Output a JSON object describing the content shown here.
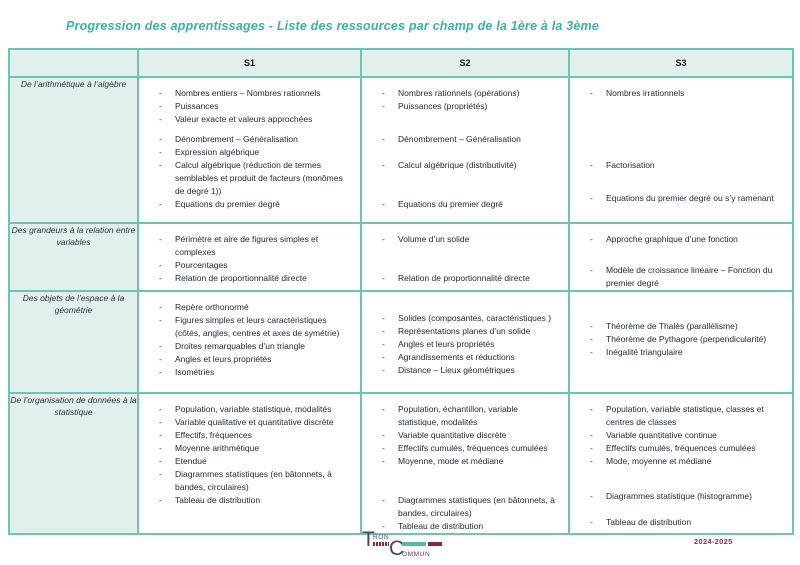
{
  "page": {
    "title": "Progression des apprentissages - Liste des ressources par champ de la 1ère à la 3ème"
  },
  "table": {
    "bullet": "-",
    "headers": [
      "S1",
      "S2",
      "S3"
    ],
    "rows": [
      {
        "label": "De l’arithmétique à l’algèbre",
        "cols": [
          [
            {
              "text": "Nombres entiers – Nombres rationnels",
              "gap": 0
            },
            {
              "text": "Puissances",
              "gap": 0
            },
            {
              "text": "Valeur exacte et valeurs approchées",
              "gap": 0
            },
            {
              "text": "Dénombrement – Généralisation",
              "gap": 7
            },
            {
              "text": "Expression algébrique",
              "gap": 0
            },
            {
              "text": "Calcul algébrique (réduction de termes semblables et produit de facteurs (monômes de degré 1))",
              "gap": 0
            },
            {
              "text": "Equations du premier degré",
              "gap": 0
            }
          ],
          [
            {
              "text": "Nombres rationnels (opérations)",
              "gap": 0
            },
            {
              "text": "Puissances (propriétés)",
              "gap": 0
            },
            {
              "text": "Dénombrement – Généralisation",
              "gap": 20
            },
            {
              "text": "Calcul algébrique (distributivité)",
              "gap": 13
            },
            {
              "text": "Equations du premier degré",
              "gap": 26
            }
          ],
          [
            {
              "text": "Nombres irrationnels",
              "gap": 0
            },
            {
              "text": "Factorisation",
              "gap": 59
            },
            {
              "text": "Equations du premier degré ou s’y ramenant",
              "gap": 20
            }
          ]
        ]
      },
      {
        "label": "Des grandeurs à la relation entre variables",
        "cols": [
          [
            {
              "text": "Périmètre et aire de figures simples et complexes",
              "gap": 0
            },
            {
              "text": "Pourcentages",
              "gap": 0
            },
            {
              "text": "Relation de proportionnalité directe",
              "gap": 0
            }
          ],
          [
            {
              "text": "Volume d’un solide",
              "gap": 0
            },
            {
              "text": "Relation de proportionnalité directe",
              "gap": 26
            }
          ],
          [
            {
              "text": "Approche graphique d’une fonction",
              "gap": 0
            },
            {
              "text": "Modèle de croissance linéaire – Fonction du premier degré",
              "gap": 18
            }
          ]
        ]
      },
      {
        "label": "Des objets de l’espace à la géométrie",
        "cols": [
          [
            {
              "text": "Repère orthonormé",
              "gap": 0
            },
            {
              "text": "Figures simples et leurs caractéristiques (côtés, angles, centres et axes de symétrie)",
              "gap": 0
            },
            {
              "text": "Droites remarquables d’un triangle",
              "gap": 0
            },
            {
              "text": "Angles et leurs propriétés",
              "gap": 0
            },
            {
              "text": "Isométries",
              "gap": 0
            }
          ],
          [
            {
              "text": "Solides (composantes, caractéristiques )",
              "gap": 11
            },
            {
              "text": "Représentations planes d’un solide",
              "gap": 0
            },
            {
              "text": "Angles et leurs propriétés",
              "gap": 0
            },
            {
              "text": "Agrandissements et réductions",
              "gap": 0
            },
            {
              "text": "Distance – Lieux géométriques",
              "gap": 0
            }
          ],
          [
            {
              "text": "Théorème de Thalès (parallélisme)",
              "gap": 19
            },
            {
              "text": "Théorème de Pythagore (perpendicularité)",
              "gap": 0
            },
            {
              "text": "Inégalité triangulaire",
              "gap": 0
            }
          ]
        ]
      },
      {
        "label": "De l’organisation de données à la statistique",
        "cols": [
          [
            {
              "text": "Population, variable statistique, modalités",
              "gap": 0
            },
            {
              "text": "Variable qualitative et quantitative discrète",
              "gap": 0
            },
            {
              "text": "Effectifs, fréquences",
              "gap": 0
            },
            {
              "text": "Moyenne arithmétique",
              "gap": 0
            },
            {
              "text": "Etendue",
              "gap": 0
            },
            {
              "text": "Diagrammes statistiques (en bâtonnets, à bandes, circulaires)",
              "gap": 0
            },
            {
              "text": "Tableau de distribution",
              "gap": 0
            }
          ],
          [
            {
              "text": "Population, échantillon, variable statistique, modalités",
              "gap": 0
            },
            {
              "text": "Variable quantitative discrète",
              "gap": 0
            },
            {
              "text": "Effectifs cumulés, fréquences cumulées",
              "gap": 0
            },
            {
              "text": "Moyenne, mode et médiane",
              "gap": 0
            },
            {
              "text": "Diagrammes statistiques (en bâtonnets, à bandes, circulaires)",
              "gap": 26
            },
            {
              "text": "Tableau de distribution",
              "gap": 0
            }
          ],
          [
            {
              "text": "Population, variable statistique, classes et centres de classes",
              "gap": 0
            },
            {
              "text": "Variable quantitative continue",
              "gap": 0
            },
            {
              "text": "Effectifs cumulés, fréquences cumulées",
              "gap": 0
            },
            {
              "text": "Mode, moyenne et médiane",
              "gap": 0
            },
            {
              "text": "Diagrammes statistique (histogramme)",
              "gap": 22
            },
            {
              "text": "Tableau de distribution",
              "gap": 13
            }
          ]
        ]
      }
    ]
  },
  "footer": {
    "logo": {
      "t": "T",
      "ron": "RON",
      "c": "C",
      "ommun": "OMMUN"
    },
    "year": "2024-2025"
  },
  "colors": {
    "title_teal": "#3bb1a7",
    "border_teal": "#6cc3b6",
    "cell_mint": "#e2f0ec",
    "logo_navy": "#43486e",
    "logo_teal": "#52b8ac",
    "logo_maroon": "#8b2942",
    "year_plum": "#8a3150"
  }
}
